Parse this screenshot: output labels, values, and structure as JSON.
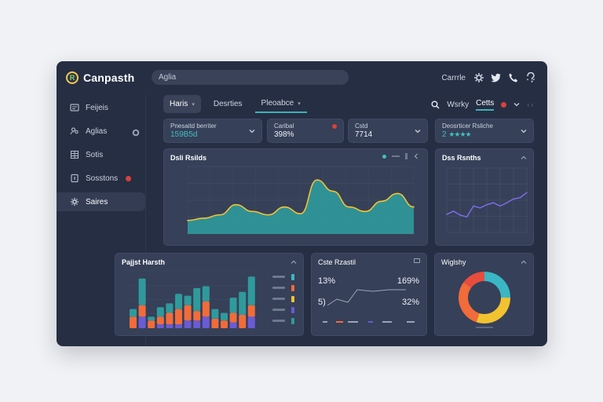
{
  "app": {
    "name": "Canpasth",
    "logo_letter": "R"
  },
  "search": {
    "value": "Aglia"
  },
  "topbar": {
    "label": "Carrrle",
    "icons": [
      "settings-icon",
      "twitter-icon",
      "phone-icon",
      "help-icon"
    ]
  },
  "sidebar": {
    "items": [
      {
        "label": "Feijeis",
        "icon": "folder-icon"
      },
      {
        "label": "Aglias",
        "icon": "users-icon"
      },
      {
        "label": "Sotis",
        "icon": "grid-icon"
      },
      {
        "label": "Sosstons",
        "icon": "sessions-icon",
        "badge": true
      },
      {
        "label": "Saires",
        "icon": "settings-icon",
        "active": true
      }
    ]
  },
  "tabs": [
    {
      "label": "Haris",
      "selected": true,
      "caret": "▾"
    },
    {
      "label": "Desrties"
    },
    {
      "label": "Pleoabce",
      "caret": "▾",
      "outlined": true
    }
  ],
  "toolbar": {
    "search_label": "Wsrky",
    "cells_label": "Cetts",
    "more": "‹ ‹"
  },
  "stats": [
    {
      "label": "Pnesaitd berriter",
      "value": "159B5d"
    },
    {
      "label": "Caribal",
      "value": "398%"
    },
    {
      "label": "Cstd",
      "value": "7714"
    },
    {
      "label": "Deosrticer Rsliche",
      "value": "2",
      "stars": "★★★★"
    }
  ],
  "panels": {
    "main_chart": {
      "title": "Dsli Rsilds"
    },
    "side_chart": {
      "title": "Dss Rsnths"
    },
    "bar_chart": {
      "title": "Pajjst Harsth"
    },
    "cash_panel": {
      "title": "Cste Rzastil",
      "stat1": "13%",
      "stat2": "169%",
      "stat3": "5)",
      "stat4": "32%"
    },
    "donut": {
      "title": "Wiglshy"
    }
  },
  "colors": {
    "teal": "#2f9a9c",
    "yellow": "#f1c232",
    "orange": "#f26b3a",
    "purple": "#6a5bd6",
    "window": "#262e44",
    "card": "#364058"
  },
  "chart_data": [
    {
      "type": "area",
      "x": [
        0,
        1,
        2,
        3,
        4,
        5,
        6,
        7,
        8,
        9,
        10,
        11,
        12,
        13,
        14
      ],
      "values": [
        12,
        14,
        17,
        26,
        20,
        17,
        24,
        18,
        48,
        38,
        24,
        20,
        29,
        36,
        24
      ],
      "ylim": [
        0,
        60
      ]
    },
    {
      "type": "line",
      "values": [
        28,
        33,
        27,
        24,
        41,
        38,
        43,
        46,
        41,
        46,
        52,
        54,
        62
      ],
      "ylim": [
        0,
        100
      ]
    },
    {
      "type": "bar",
      "categories": [
        "1",
        "2",
        "3",
        "4",
        "5",
        "6",
        "7",
        "8",
        "9",
        "10",
        "11",
        "12",
        "13",
        "14"
      ],
      "series": [
        {
          "values": [
            6,
            6,
            4,
            4,
            6,
            8,
            8,
            5,
            8,
            5,
            4,
            5,
            7,
            6
          ]
        },
        {
          "values": [
            4,
            14,
            2,
            5,
            5,
            8,
            5,
            12,
            8,
            5,
            4,
            8,
            12,
            15
          ]
        },
        {
          "values": [
            0,
            6,
            0,
            2,
            2,
            2,
            4,
            4,
            6,
            0,
            0,
            3,
            0,
            6
          ]
        }
      ],
      "ylim": [
        0,
        30
      ]
    },
    {
      "type": "pie",
      "values": [
        25,
        30,
        30,
        15
      ],
      "colors": [
        "#3ab6c4",
        "#f2c230",
        "#f26b3a",
        "#e84c3d"
      ]
    }
  ]
}
